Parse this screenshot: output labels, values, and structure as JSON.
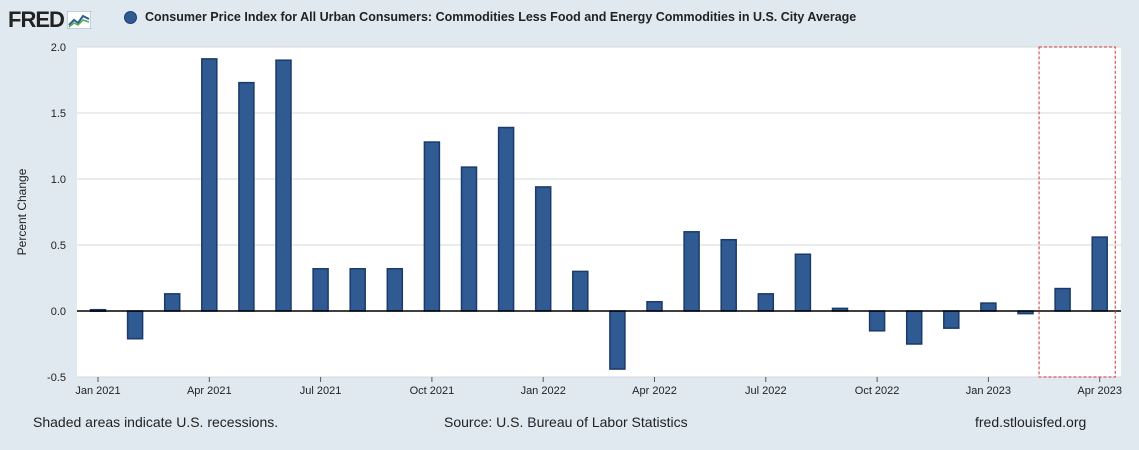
{
  "header": {
    "logo_text": "FRED",
    "series_title": "Consumer Price Index for All Urban Consumers: Commodities Less Food and Energy Commodities in U.S. City Average"
  },
  "footer": {
    "recession_note": "Shaded areas indicate U.S. recessions.",
    "source": "Source: U.S. Bureau of Labor Statistics",
    "site": "fred.stlouisfed.org"
  },
  "colors": {
    "bar_fill": "#2f5a92",
    "bar_stroke": "#1a3a6b",
    "plot_bg": "#ffffff",
    "page_bg": "#e1e9f0",
    "grid": "#d4d8dc",
    "forecast_box": "#cc3333"
  },
  "chart_data": {
    "type": "bar",
    "title": "Consumer Price Index for All Urban Consumers: Commodities Less Food and Energy Commodities in U.S. City Average",
    "xlabel": "",
    "ylabel": "Percent Change",
    "ylim": [
      -0.5,
      2.0
    ],
    "yticks": [
      -0.5,
      0.0,
      0.5,
      1.0,
      1.5,
      2.0
    ],
    "ytick_labels": [
      "-0.5",
      "0.0",
      "0.5",
      "1.0",
      "1.5",
      "2.0"
    ],
    "grid": true,
    "categories": [
      "Jan 2021",
      "Feb 2021",
      "Mar 2021",
      "Apr 2021",
      "May 2021",
      "Jun 2021",
      "Jul 2021",
      "Aug 2021",
      "Sep 2021",
      "Oct 2021",
      "Nov 2021",
      "Dec 2021",
      "Jan 2022",
      "Feb 2022",
      "Mar 2022",
      "Apr 2022",
      "May 2022",
      "Jun 2022",
      "Jul 2022",
      "Aug 2022",
      "Sep 2022",
      "Oct 2022",
      "Nov 2022",
      "Dec 2022",
      "Jan 2023",
      "Feb 2023",
      "Mar 2023",
      "Apr 2023"
    ],
    "values": [
      0.01,
      -0.21,
      0.13,
      1.91,
      1.73,
      1.9,
      0.32,
      0.32,
      0.32,
      1.28,
      1.09,
      1.39,
      0.94,
      0.3,
      -0.44,
      0.07,
      0.6,
      0.54,
      0.13,
      0.43,
      0.02,
      -0.15,
      -0.25,
      -0.13,
      0.06,
      -0.02,
      0.17,
      0.56
    ],
    "xtick_labels": [
      {
        "index": 0,
        "label": "Jan 2021"
      },
      {
        "index": 3,
        "label": "Apr 2021"
      },
      {
        "index": 6,
        "label": "Jul 2021"
      },
      {
        "index": 9,
        "label": "Oct 2021"
      },
      {
        "index": 12,
        "label": "Jan 2022"
      },
      {
        "index": 15,
        "label": "Apr 2022"
      },
      {
        "index": 18,
        "label": "Jul 2022"
      },
      {
        "index": 21,
        "label": "Oct 2022"
      },
      {
        "index": 24,
        "label": "Jan 2023"
      },
      {
        "index": 27,
        "label": "Apr 2023"
      }
    ],
    "highlight_range": {
      "start_index": 26,
      "end_index": 27,
      "style": "dashed-box"
    }
  }
}
